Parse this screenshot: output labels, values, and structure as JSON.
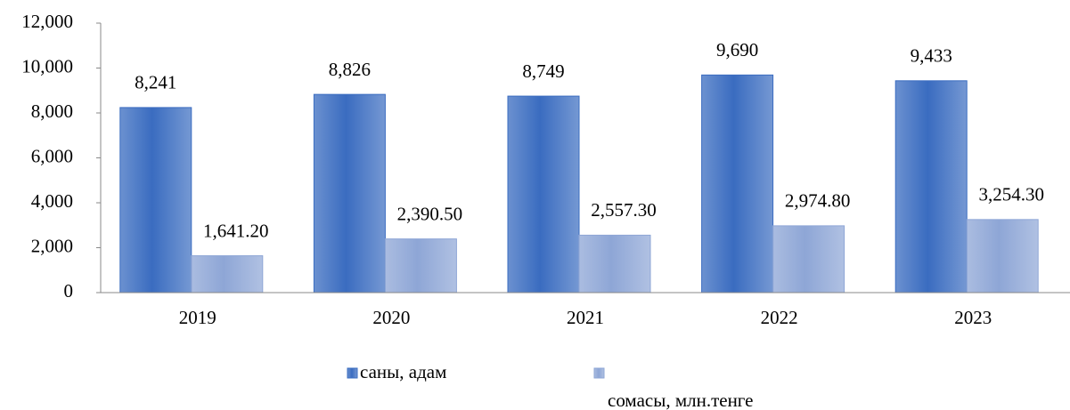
{
  "chart_data": {
    "type": "bar",
    "categories": [
      "2019",
      "2020",
      "2021",
      "2022",
      "2023"
    ],
    "series": [
      {
        "name": "саны, адам",
        "color": "#3a6cc0",
        "values": [
          8241,
          8826,
          8749,
          9690,
          9433
        ],
        "value_labels": [
          "8,241",
          "8,826",
          "8,749",
          "9,690",
          "9,433"
        ]
      },
      {
        "name": "сомасы, млн.тенге",
        "color": "#8ea6d6",
        "values": [
          1641.2,
          2390.5,
          2557.3,
          2974.8,
          3254.3
        ],
        "value_labels": [
          "1,641.20",
          "2,390.50",
          "2,557.30",
          "2,974.80",
          "3,254.30"
        ]
      }
    ],
    "ylim": [
      0,
      12000
    ],
    "yticks": [
      0,
      {
        "value": 2000,
        "label": "2,000"
      },
      {
        "value": 4000,
        "label": "4,000"
      },
      {
        "value": 6000,
        "label": "6,000"
      },
      {
        "value": 8000,
        "label": "8,000"
      },
      {
        "value": 10000,
        "label": "10,000"
      },
      {
        "value": 12000,
        "label": "12,000"
      }
    ],
    "legend": "bottom"
  }
}
